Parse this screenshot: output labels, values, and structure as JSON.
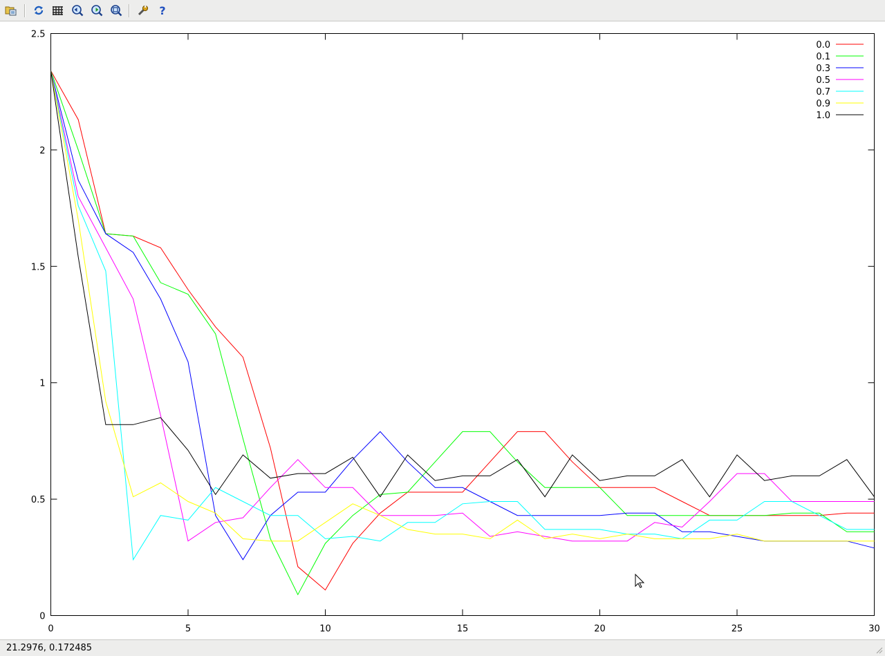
{
  "toolbar": {
    "buttons": [
      {
        "name": "export-icon"
      },
      {
        "name": "replot-icon"
      },
      {
        "name": "grid-icon"
      },
      {
        "name": "zoom-previous-icon"
      },
      {
        "name": "zoom-next-icon"
      },
      {
        "name": "unzoom-icon"
      },
      {
        "name": "settings-icon"
      },
      {
        "name": "help-icon"
      }
    ]
  },
  "status": {
    "coordinates": "21.2976,  0.172485"
  },
  "chart_data": {
    "type": "line",
    "title": "",
    "xlabel": "",
    "ylabel": "",
    "xlim": [
      0,
      30
    ],
    "ylim": [
      0,
      2.5
    ],
    "xticks": [
      0,
      5,
      10,
      15,
      20,
      25,
      30
    ],
    "yticks": [
      0,
      0.5,
      1,
      1.5,
      2,
      2.5
    ],
    "xtick_labels": [
      "0",
      "5",
      "10",
      "15",
      "20",
      "25",
      "30"
    ],
    "ytick_labels": [
      "0",
      "0.5",
      "1",
      "1.5",
      "2",
      "2.5"
    ],
    "grid": false,
    "legend_position": "top-right",
    "x": [
      0,
      1,
      2,
      3,
      4,
      5,
      6,
      7,
      8,
      9,
      10,
      11,
      12,
      13,
      14,
      15,
      16,
      17,
      18,
      19,
      20,
      21,
      22,
      23,
      24,
      25,
      26,
      27,
      28,
      29,
      30
    ],
    "series": [
      {
        "name": "0.0",
        "color": "#ff0000",
        "values": [
          2.34,
          2.13,
          1.64,
          1.63,
          1.58,
          1.4,
          1.24,
          1.11,
          0.72,
          0.21,
          0.11,
          0.31,
          0.44,
          0.53,
          0.53,
          0.53,
          0.66,
          0.79,
          0.79,
          0.66,
          0.55,
          0.55,
          0.55,
          0.49,
          0.43,
          0.43,
          0.43,
          0.43,
          0.43,
          0.44,
          0.44
        ]
      },
      {
        "name": "0.1",
        "color": "#00ff00",
        "values": [
          2.34,
          2.0,
          1.64,
          1.63,
          1.43,
          1.38,
          1.21,
          0.76,
          0.33,
          0.09,
          0.31,
          0.43,
          0.52,
          0.53,
          0.66,
          0.79,
          0.79,
          0.66,
          0.55,
          0.55,
          0.55,
          0.43,
          0.43,
          0.43,
          0.43,
          0.43,
          0.43,
          0.44,
          0.44,
          0.36,
          0.36
        ]
      },
      {
        "name": "0.3",
        "color": "#0000ff",
        "values": [
          2.34,
          1.87,
          1.64,
          1.56,
          1.36,
          1.09,
          0.43,
          0.24,
          0.43,
          0.53,
          0.53,
          0.67,
          0.79,
          0.66,
          0.55,
          0.55,
          0.49,
          0.43,
          0.43,
          0.43,
          0.43,
          0.44,
          0.44,
          0.36,
          0.36,
          0.34,
          0.32,
          0.32,
          0.32,
          0.32,
          0.29
        ]
      },
      {
        "name": "0.5",
        "color": "#ff00ff",
        "values": [
          2.34,
          1.8,
          1.58,
          1.36,
          0.86,
          0.32,
          0.4,
          0.42,
          0.55,
          0.67,
          0.55,
          0.55,
          0.43,
          0.43,
          0.43,
          0.44,
          0.34,
          0.36,
          0.34,
          0.32,
          0.32,
          0.32,
          0.4,
          0.38,
          0.49,
          0.61,
          0.61,
          0.49,
          0.49,
          0.49,
          0.49
        ]
      },
      {
        "name": "0.7",
        "color": "#00ffff",
        "values": [
          2.34,
          1.76,
          1.48,
          0.24,
          0.43,
          0.41,
          0.55,
          0.49,
          0.43,
          0.43,
          0.33,
          0.34,
          0.32,
          0.4,
          0.4,
          0.48,
          0.49,
          0.49,
          0.37,
          0.37,
          0.37,
          0.35,
          0.35,
          0.33,
          0.41,
          0.41,
          0.49,
          0.49,
          0.43,
          0.37,
          0.37
        ]
      },
      {
        "name": "0.9",
        "color": "#ffff00",
        "values": [
          2.34,
          1.7,
          0.92,
          0.51,
          0.57,
          0.49,
          0.44,
          0.33,
          0.32,
          0.32,
          0.4,
          0.48,
          0.43,
          0.37,
          0.35,
          0.35,
          0.33,
          0.41,
          0.33,
          0.35,
          0.33,
          0.35,
          0.33,
          0.33,
          0.33,
          0.35,
          0.32,
          0.32,
          0.32,
          0.32,
          0.32
        ]
      },
      {
        "name": "1.0",
        "color": "#000000",
        "values": [
          2.34,
          1.54,
          0.82,
          0.82,
          0.85,
          0.71,
          0.52,
          0.69,
          0.59,
          0.61,
          0.61,
          0.68,
          0.51,
          0.69,
          0.58,
          0.6,
          0.6,
          0.67,
          0.51,
          0.69,
          0.58,
          0.6,
          0.6,
          0.67,
          0.51,
          0.69,
          0.58,
          0.6,
          0.6,
          0.67,
          0.51
        ]
      }
    ]
  }
}
